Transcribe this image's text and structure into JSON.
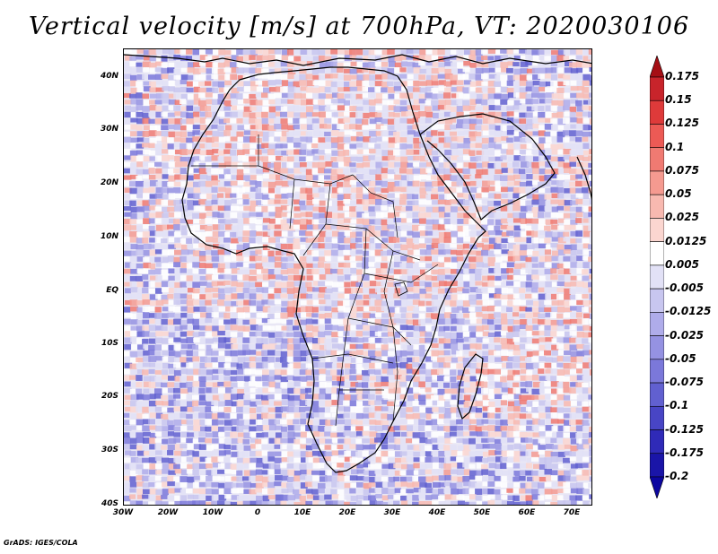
{
  "title": "Vertical velocity [m/s] at 700hPa, VT: 2020030106",
  "footer": "GrADS: IGES/COLA",
  "map": {
    "lat_labels": [
      "40N",
      "30N",
      "20N",
      "10N",
      "EQ",
      "10S",
      "20S",
      "30S",
      "40S"
    ],
    "lon_labels": [
      "30W",
      "20W",
      "10W",
      "0",
      "10E",
      "20E",
      "30E",
      "40E",
      "50E",
      "60E",
      "70E"
    ],
    "colors": {
      "ocean_base": "#e9e7f5",
      "land_base": "#f3e6ea",
      "coastline": "#000000"
    }
  },
  "colorbar": {
    "labels": [
      "0.175",
      "0.15",
      "0.125",
      "0.1",
      "0.075",
      "0.05",
      "0.025",
      "0.0125",
      "0.005",
      "-0.005",
      "-0.0125",
      "-0.025",
      "-0.05",
      "-0.075",
      "-0.1",
      "-0.125",
      "-0.175",
      "-0.2"
    ],
    "colors": [
      "#a50f15",
      "#c8242b",
      "#de3a3a",
      "#ec5a55",
      "#f07a72",
      "#f59a90",
      "#f8b9b0",
      "#fbd6d0",
      "#ffffff",
      "#e2e1f6",
      "#c8c6ef",
      "#afacea",
      "#9592e2",
      "#7b78da",
      "#6160d0",
      "#4845c5",
      "#2f2ab8",
      "#1a15a8",
      "#0c06a0"
    ]
  }
}
